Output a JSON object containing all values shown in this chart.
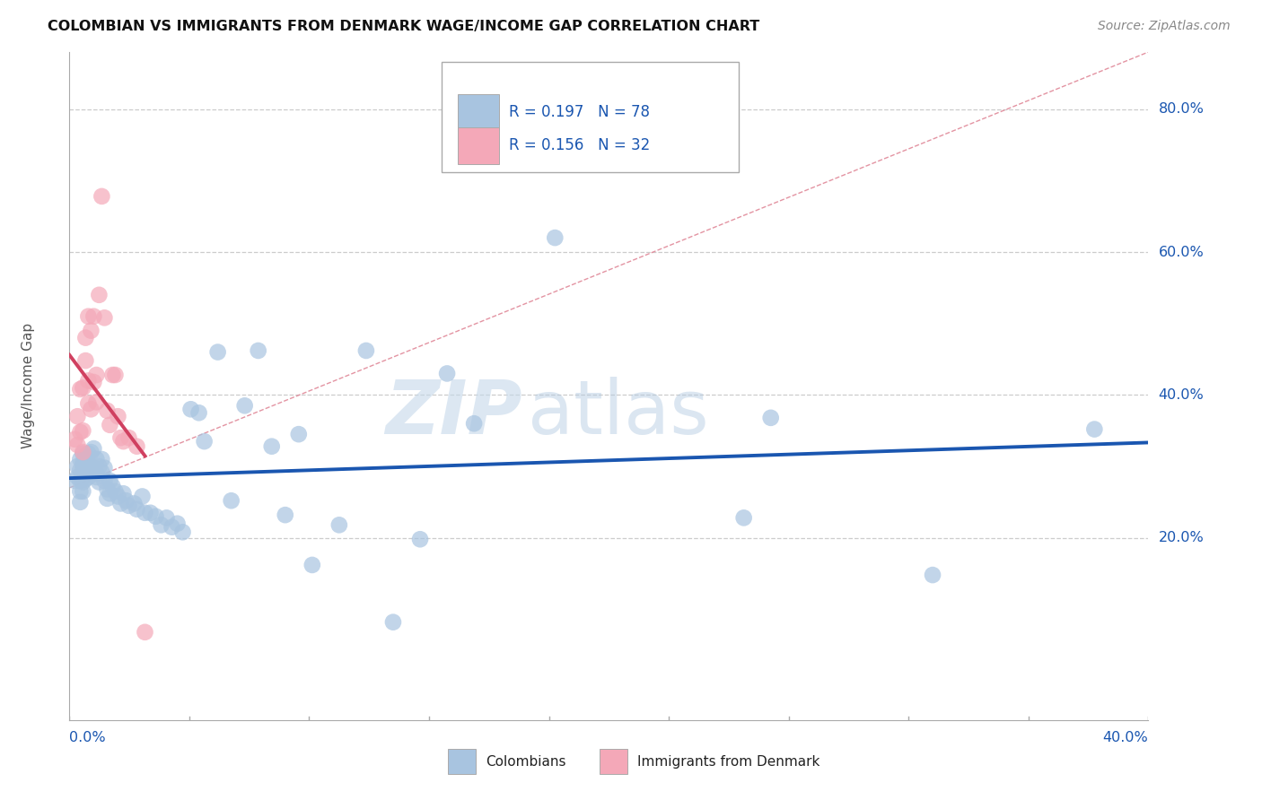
{
  "title": "COLOMBIAN VS IMMIGRANTS FROM DENMARK WAGE/INCOME GAP CORRELATION CHART",
  "source": "Source: ZipAtlas.com",
  "ylabel": "Wage/Income Gap",
  "right_yticks": [
    "80.0%",
    "60.0%",
    "40.0%",
    "20.0%"
  ],
  "right_ytick_vals": [
    0.8,
    0.6,
    0.4,
    0.2
  ],
  "bottom_xtick_left": "0.0%",
  "bottom_xtick_right": "40.0%",
  "legend_colombians": "Colombians",
  "legend_denmark": "Immigrants from Denmark",
  "R_colombians": 0.197,
  "N_colombians": 78,
  "R_denmark": 0.156,
  "N_denmark": 32,
  "colombian_color": "#a8c4e0",
  "denmark_color": "#f4a8b8",
  "colombian_line_color": "#1a56b0",
  "denmark_line_color": "#d04060",
  "diag_line_color": "#e08898",
  "watermark_zip": "ZIP",
  "watermark_atlas": "atlas",
  "xlim": [
    0.0,
    0.4
  ],
  "ylim": [
    -0.055,
    0.88
  ],
  "colombians_x": [
    0.002,
    0.003,
    0.003,
    0.004,
    0.004,
    0.004,
    0.004,
    0.004,
    0.005,
    0.005,
    0.005,
    0.005,
    0.005,
    0.005,
    0.005,
    0.006,
    0.006,
    0.006,
    0.007,
    0.007,
    0.007,
    0.008,
    0.008,
    0.009,
    0.009,
    0.01,
    0.01,
    0.01,
    0.011,
    0.011,
    0.012,
    0.012,
    0.013,
    0.013,
    0.014,
    0.014,
    0.015,
    0.015,
    0.016,
    0.017,
    0.018,
    0.019,
    0.02,
    0.021,
    0.022,
    0.024,
    0.025,
    0.027,
    0.028,
    0.03,
    0.032,
    0.034,
    0.036,
    0.038,
    0.04,
    0.042,
    0.045,
    0.048,
    0.05,
    0.055,
    0.06,
    0.065,
    0.07,
    0.075,
    0.08,
    0.085,
    0.09,
    0.1,
    0.11,
    0.12,
    0.13,
    0.14,
    0.15,
    0.18,
    0.25,
    0.26,
    0.32,
    0.38
  ],
  "colombians_y": [
    0.28,
    0.3,
    0.285,
    0.31,
    0.295,
    0.28,
    0.265,
    0.25,
    0.318,
    0.305,
    0.292,
    0.278,
    0.265,
    0.285,
    0.3,
    0.315,
    0.298,
    0.282,
    0.318,
    0.3,
    0.285,
    0.32,
    0.295,
    0.325,
    0.298,
    0.285,
    0.31,
    0.29,
    0.3,
    0.278,
    0.31,
    0.292,
    0.298,
    0.28,
    0.268,
    0.255,
    0.28,
    0.262,
    0.272,
    0.265,
    0.258,
    0.248,
    0.262,
    0.252,
    0.245,
    0.248,
    0.24,
    0.258,
    0.235,
    0.235,
    0.23,
    0.218,
    0.228,
    0.215,
    0.22,
    0.208,
    0.38,
    0.375,
    0.335,
    0.46,
    0.252,
    0.385,
    0.462,
    0.328,
    0.232,
    0.345,
    0.162,
    0.218,
    0.462,
    0.082,
    0.198,
    0.43,
    0.36,
    0.62,
    0.228,
    0.368,
    0.148,
    0.352
  ],
  "denmark_x": [
    0.002,
    0.003,
    0.003,
    0.004,
    0.004,
    0.005,
    0.005,
    0.005,
    0.006,
    0.006,
    0.007,
    0.007,
    0.007,
    0.008,
    0.008,
    0.009,
    0.009,
    0.01,
    0.01,
    0.011,
    0.012,
    0.013,
    0.014,
    0.015,
    0.016,
    0.017,
    0.018,
    0.019,
    0.02,
    0.022,
    0.025,
    0.028
  ],
  "denmark_y": [
    0.338,
    0.37,
    0.33,
    0.408,
    0.348,
    0.41,
    0.35,
    0.32,
    0.48,
    0.448,
    0.51,
    0.42,
    0.388,
    0.49,
    0.38,
    0.51,
    0.418,
    0.39,
    0.428,
    0.54,
    0.678,
    0.508,
    0.378,
    0.358,
    0.428,
    0.428,
    0.37,
    0.34,
    0.335,
    0.34,
    0.328,
    0.068
  ]
}
